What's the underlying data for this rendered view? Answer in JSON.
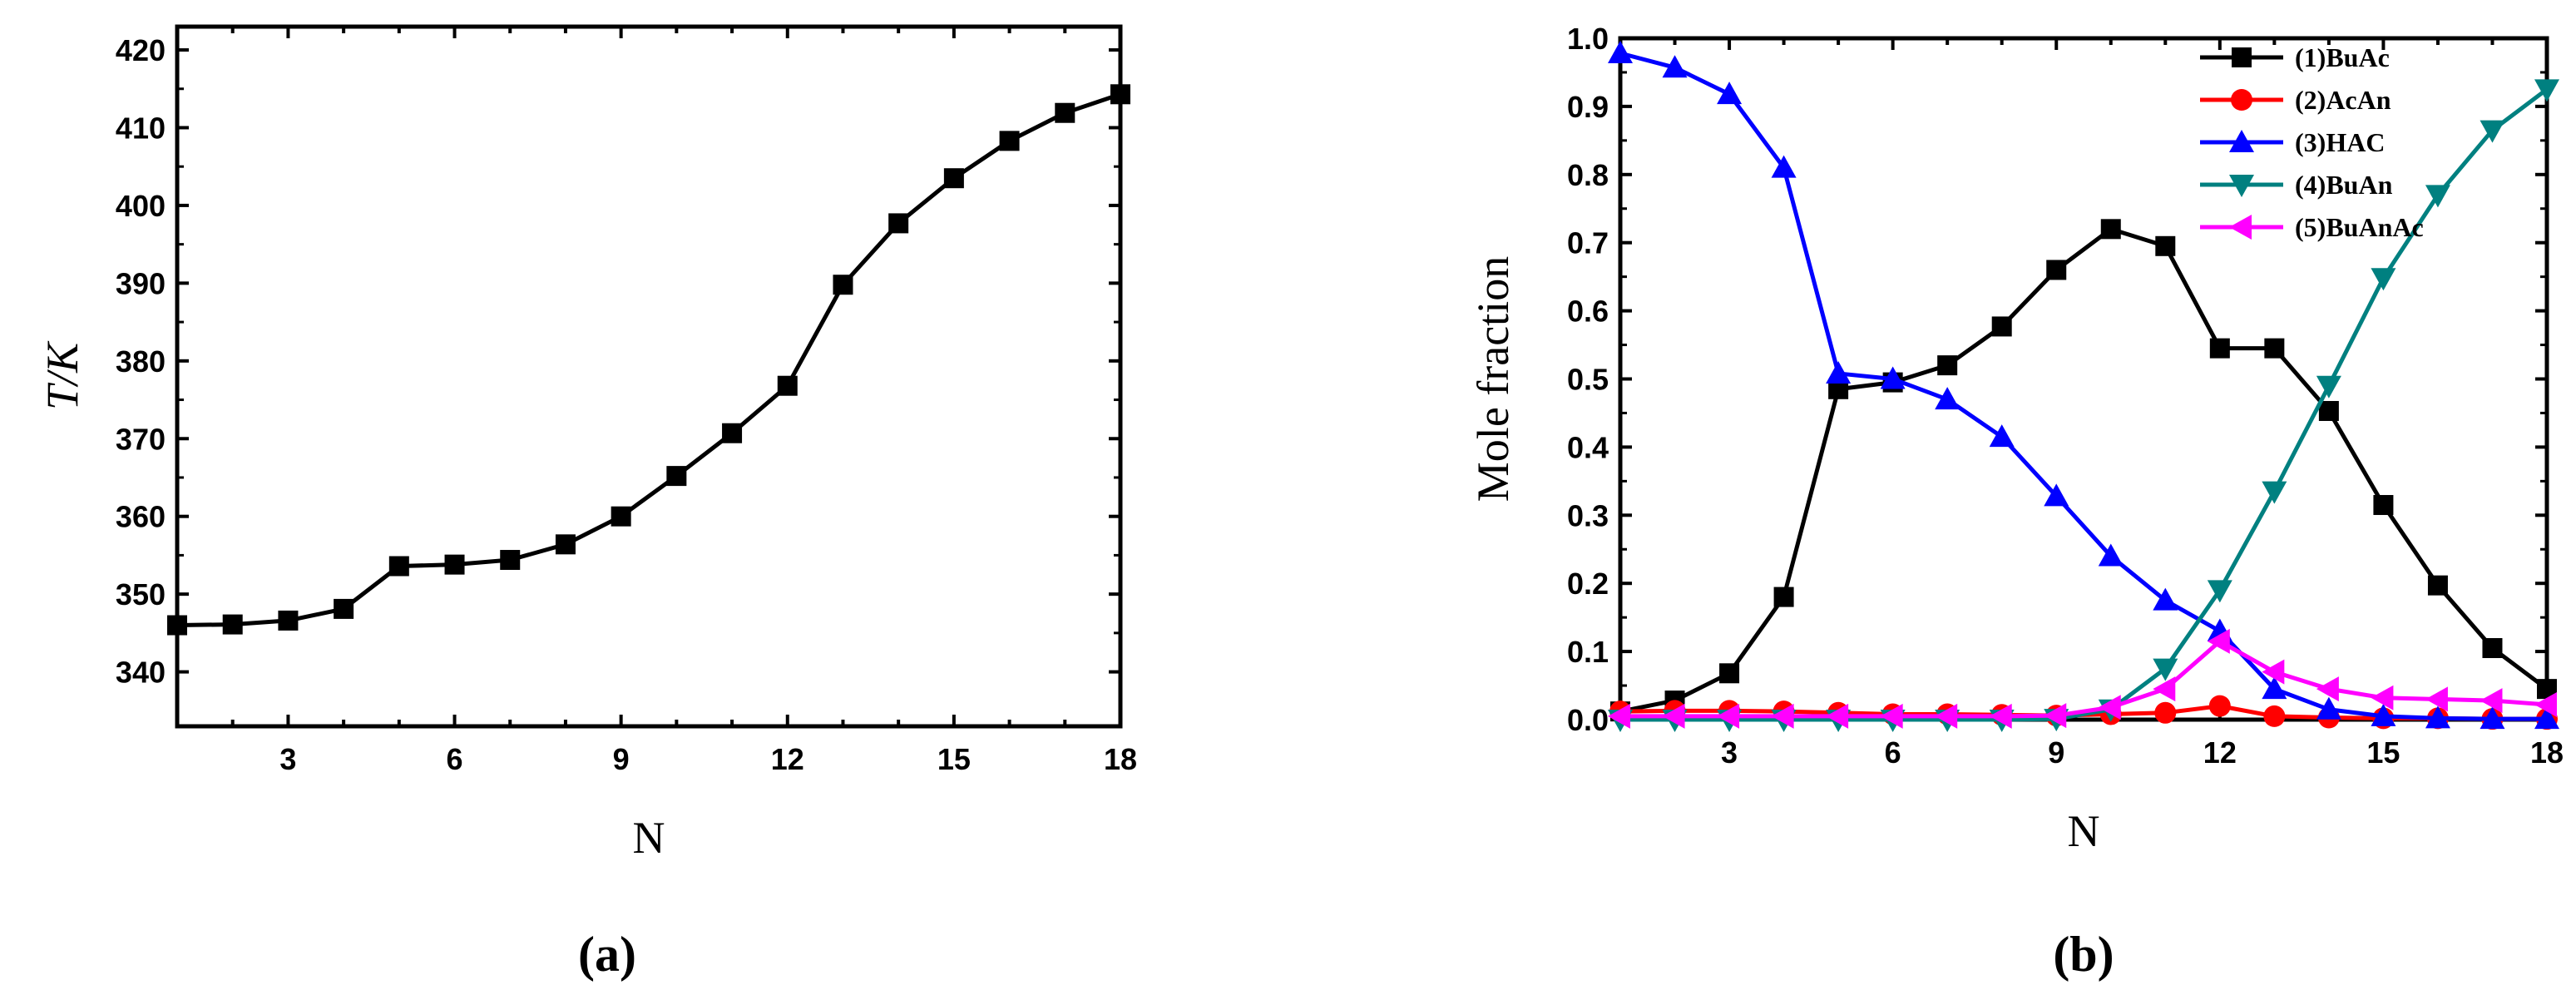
{
  "chart_data": [
    {
      "type": "line",
      "panel_label": "(a)",
      "xlabel": "N",
      "ylabel": "T/K",
      "xlim": [
        1,
        18
      ],
      "ylim": [
        333,
        423
      ],
      "xticks": [
        3,
        6,
        9,
        12,
        15,
        18
      ],
      "yticks": [
        340,
        350,
        360,
        370,
        380,
        390,
        400,
        410,
        420
      ],
      "grid": false,
      "series": [
        {
          "marker": "square",
          "color": "#000000",
          "x": [
            1,
            2,
            3,
            4,
            5,
            6,
            7,
            8,
            9,
            10,
            11,
            12,
            13,
            14,
            15,
            16,
            17,
            18
          ],
          "values": [
            346.0,
            346.1,
            346.6,
            348.1,
            353.6,
            353.8,
            354.4,
            356.4,
            360.0,
            365.2,
            370.7,
            376.8,
            389.8,
            397.7,
            403.5,
            408.3,
            411.9,
            414.3
          ]
        }
      ]
    },
    {
      "type": "line",
      "panel_label": "(b)",
      "xlabel": "N",
      "ylabel": "Mole fraction",
      "xlim": [
        1,
        18
      ],
      "ylim": [
        0,
        1.0
      ],
      "xticks": [
        3,
        6,
        9,
        12,
        15,
        18
      ],
      "yticks": [
        "0.0",
        "0.1",
        "0.2",
        "0.3",
        "0.4",
        "0.5",
        "0.6",
        "0.7",
        "0.8",
        "0.9",
        "1.0"
      ],
      "grid": false,
      "legend_position": "top-right",
      "x": [
        1,
        2,
        3,
        4,
        5,
        6,
        7,
        8,
        9,
        10,
        11,
        12,
        13,
        14,
        15,
        16,
        17,
        18
      ],
      "series": [
        {
          "name": "(1)BuAc",
          "color": "#000000",
          "marker": "square",
          "values": [
            0.012,
            0.028,
            0.068,
            0.18,
            0.485,
            0.495,
            0.52,
            0.577,
            0.66,
            0.72,
            0.695,
            0.545,
            0.545,
            0.453,
            0.315,
            0.197,
            0.105,
            0.045
          ]
        },
        {
          "name": "(2)AcAn",
          "color": "#ff0000",
          "marker": "circle",
          "values": [
            0.012,
            0.013,
            0.013,
            0.012,
            0.01,
            0.008,
            0.008,
            0.007,
            0.006,
            0.008,
            0.01,
            0.02,
            0.005,
            0.003,
            0.002,
            0.002,
            0.001,
            0.001
          ]
        },
        {
          "name": "(3)HAC",
          "color": "#0000ff",
          "marker": "triangle-up",
          "values": [
            0.978,
            0.957,
            0.918,
            0.81,
            0.508,
            0.5,
            0.47,
            0.415,
            0.328,
            0.24,
            0.175,
            0.13,
            0.045,
            0.015,
            0.005,
            0.002,
            0.001,
            0.001
          ]
        },
        {
          "name": "(4)BuAn",
          "color": "#008080",
          "marker": "triangle-down",
          "values": [
            0.0,
            0.0,
            0.0,
            0.0,
            0.0,
            0.0,
            0.0,
            0.0,
            0.001,
            0.015,
            0.075,
            0.19,
            0.335,
            0.49,
            0.648,
            0.77,
            0.865,
            0.925
          ]
        },
        {
          "name": "(5)BuAnAc",
          "color": "#ff00ff",
          "marker": "triangle-left",
          "values": [
            0.005,
            0.005,
            0.005,
            0.005,
            0.005,
            0.005,
            0.005,
            0.005,
            0.006,
            0.018,
            0.045,
            0.115,
            0.07,
            0.045,
            0.032,
            0.03,
            0.028,
            0.022
          ]
        }
      ]
    }
  ]
}
